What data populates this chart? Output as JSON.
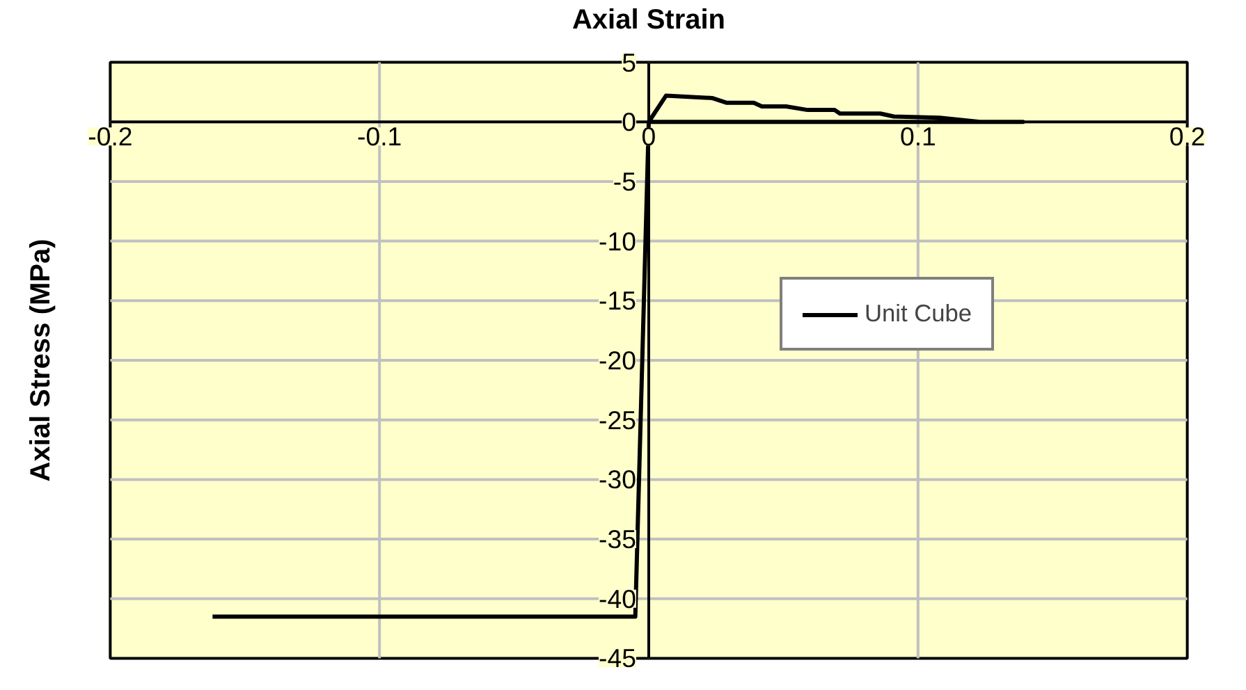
{
  "chart_data": {
    "type": "line",
    "xlabel": "Axial Strain",
    "ylabel": "Axial Stress (MPa)",
    "xlim": [
      -0.2,
      0.2
    ],
    "ylim": [
      -45,
      5
    ],
    "xticks": [
      -0.2,
      -0.1,
      0,
      0.1,
      0.2
    ],
    "yticks": [
      -45,
      -40,
      -35,
      -30,
      -25,
      -20,
      -15,
      -10,
      -5,
      0,
      5
    ],
    "grid": true,
    "legend": "right",
    "marker": "none",
    "line_style": "solid",
    "series": [
      {
        "name": "Unit Cube",
        "color": "#000000",
        "x": [
          -0.162,
          -0.005,
          0,
          0.0064,
          0.0235,
          0.029,
          0.039,
          0.042,
          0.051,
          0.059,
          0.069,
          0.071,
          0.086,
          0.091,
          0.108,
          0.123,
          0.139,
          0
        ],
        "values": [
          -41.5,
          -41.5,
          0,
          2.2,
          2.0,
          1.6,
          1.6,
          1.3,
          1.3,
          1.0,
          1.0,
          0.7,
          0.7,
          0.45,
          0.35,
          0,
          0,
          0
        ]
      }
    ]
  }
}
